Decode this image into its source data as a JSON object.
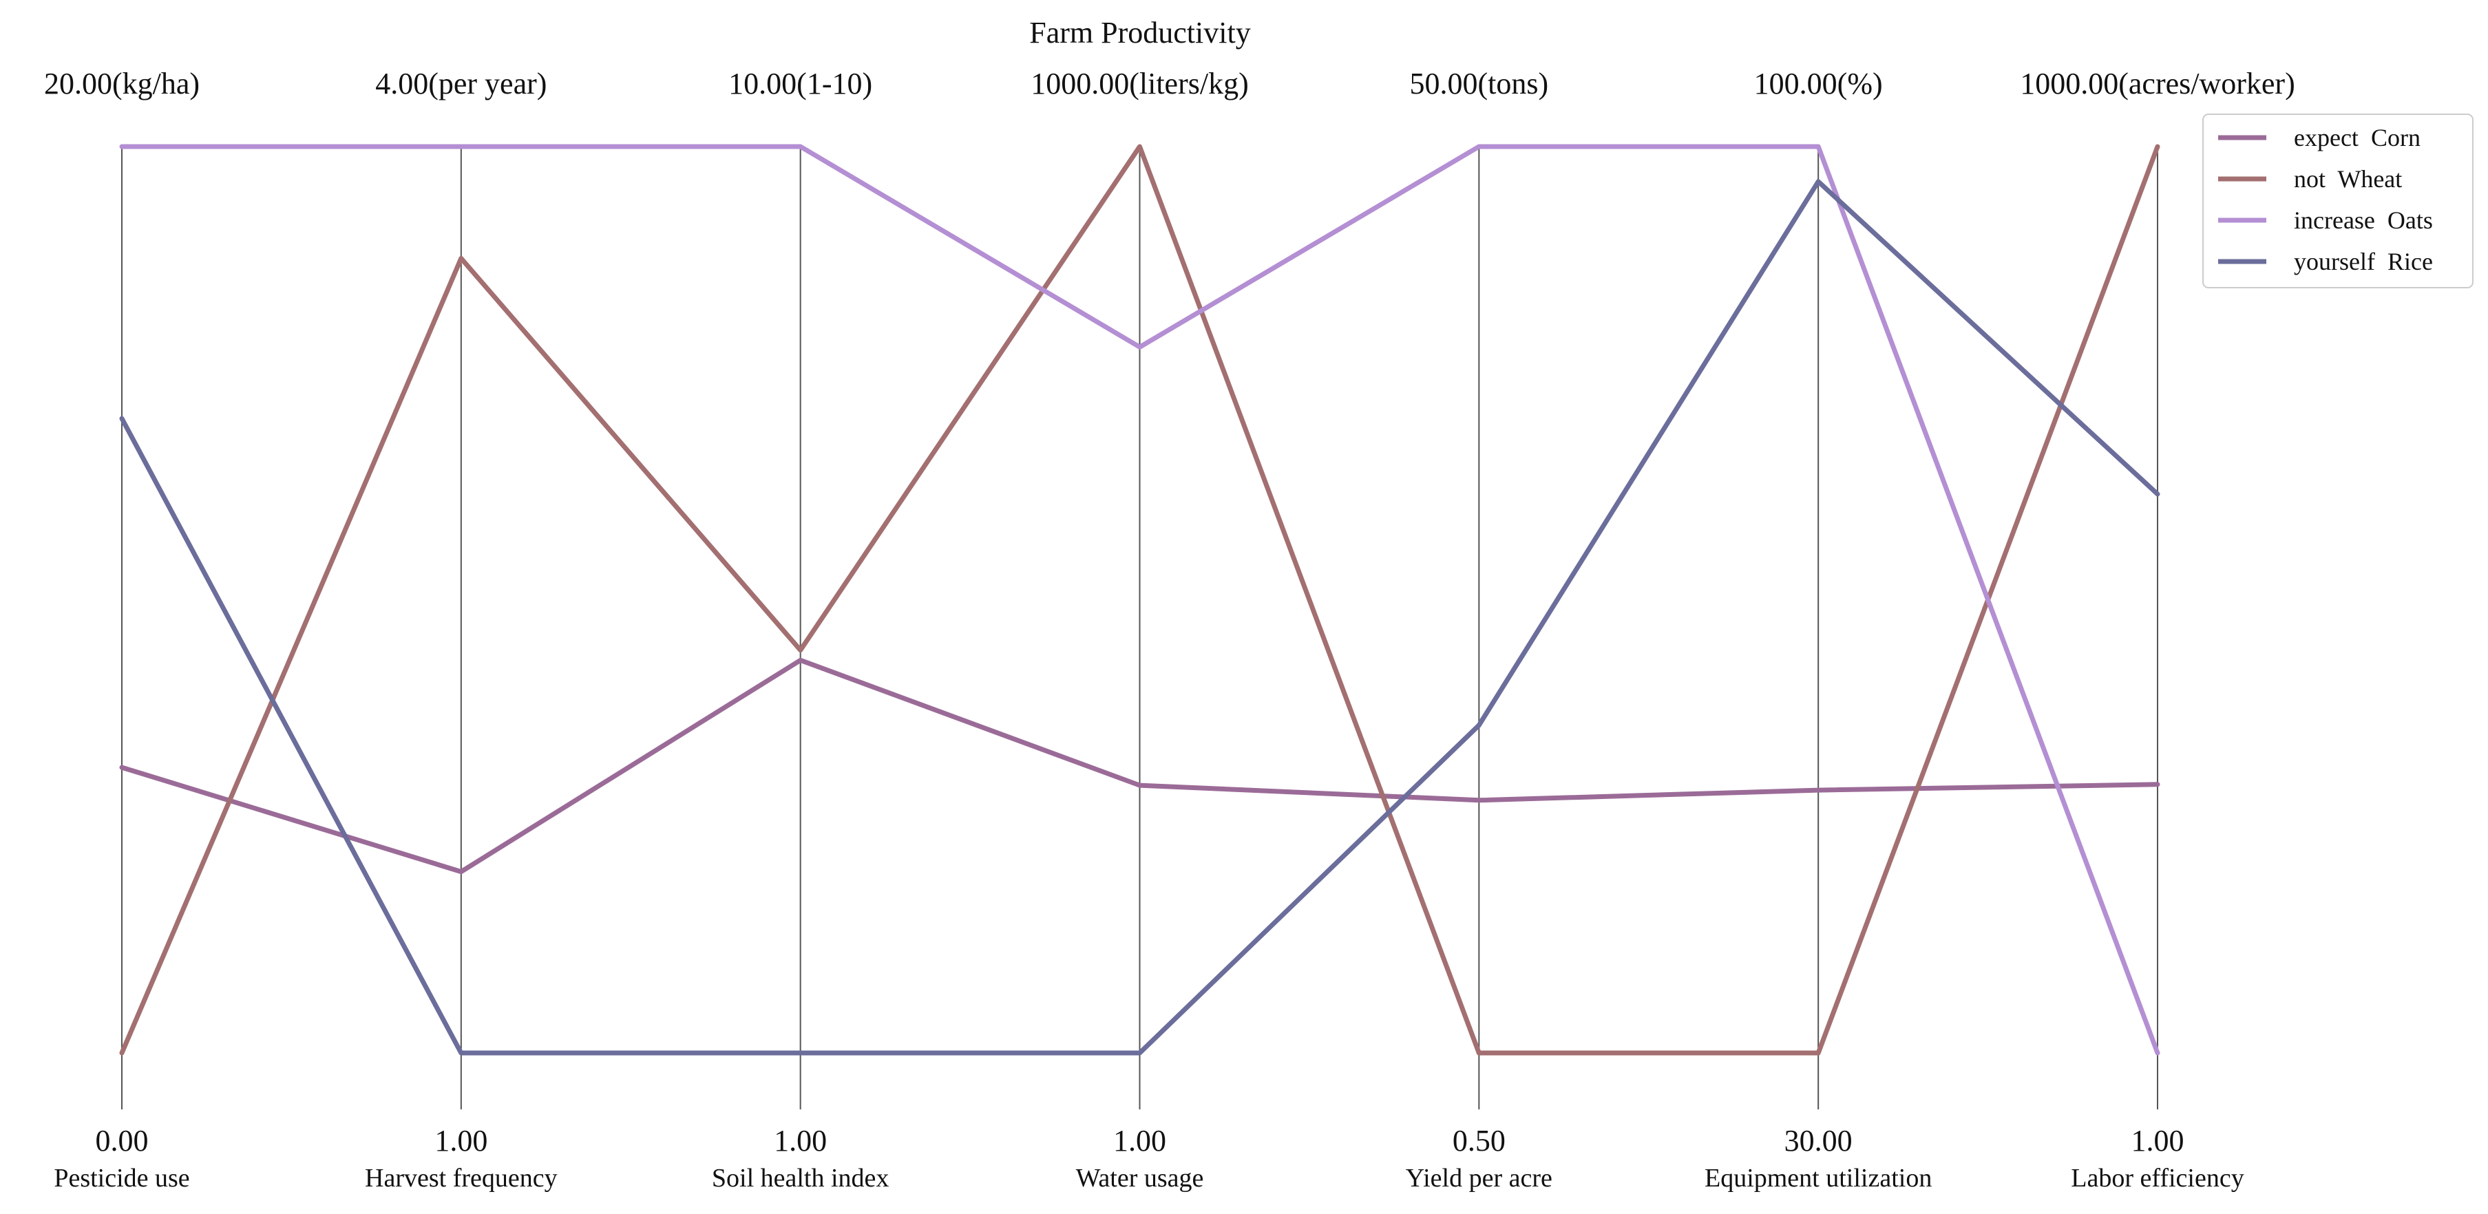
{
  "chart_data": {
    "type": "parallel-coordinates",
    "title": "Farm Productivity",
    "axes": [
      {
        "name": "Pesticide use",
        "min": 0.0,
        "max": 20.0,
        "min_label": "0.00",
        "max_label": "20.00(kg/ha)"
      },
      {
        "name": "Harvest frequency",
        "min": 1.0,
        "max": 4.0,
        "min_label": "1.00",
        "max_label": "4.00(per year)"
      },
      {
        "name": "Soil health index",
        "min": 1.0,
        "max": 10.0,
        "min_label": "1.00",
        "max_label": "10.00(1-10)"
      },
      {
        "name": "Water usage",
        "min": 1.0,
        "max": 1000.0,
        "min_label": "1.00",
        "max_label": "1000.00(liters/kg)"
      },
      {
        "name": "Yield per acre",
        "min": 0.5,
        "max": 50.0,
        "min_label": "0.50",
        "max_label": "50.00(tons)"
      },
      {
        "name": "Equipment utilization",
        "min": 30.0,
        "max": 100.0,
        "min_label": "30.00",
        "max_label": "100.00(%)"
      },
      {
        "name": "Labor efficiency",
        "min": 1.0,
        "max": 1000.0,
        "min_label": "1.00",
        "max_label": "1000.00(acres/worker)"
      }
    ],
    "series": [
      {
        "name": "expect  Corn",
        "color": "#9b6b98",
        "values": [
          6.3,
          1.6,
          4.9,
          296,
          14.3,
          50.3,
          297
        ]
      },
      {
        "name": "not  Wheat",
        "color": "#a36f70",
        "values": [
          0.0,
          3.63,
          5.0,
          1000,
          0.5,
          30.0,
          1000
        ]
      },
      {
        "name": "increase  Oats",
        "color": "#b48fd3",
        "values": [
          20.0,
          4.0,
          10.0,
          779,
          50.0,
          100.0,
          1.0
        ]
      },
      {
        "name": "yourself  Rice",
        "color": "#6b6d9b",
        "values": [
          14.0,
          1.0,
          1.0,
          1.0,
          18.4,
          97.3,
          617
        ]
      }
    ],
    "legend": "top-right",
    "grid": false
  }
}
